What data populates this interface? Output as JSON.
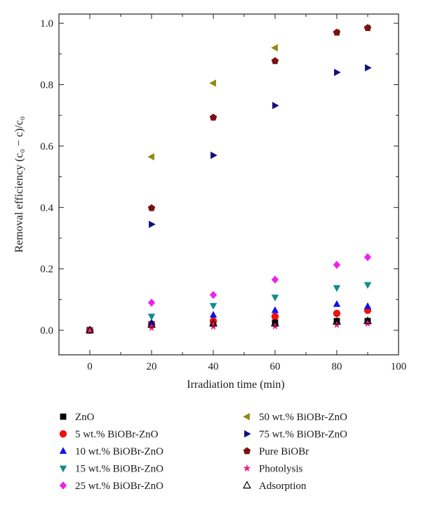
{
  "chart_data": {
    "type": "scatter",
    "title": "",
    "xlabel": "Irradiation time (min)",
    "ylabel": "Removal efficiency (c₀ − c)/c₀",
    "xlim": [
      -10,
      100
    ],
    "ylim": [
      -0.08,
      1.03
    ],
    "x_ticks": [
      0,
      20,
      40,
      60,
      80,
      100
    ],
    "y_ticks": [
      0.0,
      0.2,
      0.4,
      0.6,
      0.8,
      1.0
    ],
    "x_tick_labels": [
      "0",
      "20",
      "40",
      "60",
      "80",
      "100"
    ],
    "y_tick_labels": [
      "0.0",
      "0.2",
      "0.4",
      "0.6",
      "0.8",
      "1.0"
    ],
    "grid": false,
    "legend_position": "bottom",
    "series": [
      {
        "name": "ZnO",
        "marker": "square",
        "color": "#000000",
        "x": [
          0,
          20,
          40,
          60,
          80,
          90
        ],
        "y": [
          0.0,
          0.02,
          0.025,
          0.025,
          0.03,
          0.03
        ]
      },
      {
        "name": "5 wt.% BiOBr-ZnO",
        "marker": "circle",
        "color": "#ee1111",
        "x": [
          0,
          20,
          40,
          60,
          80,
          90
        ],
        "y": [
          0.0,
          0.02,
          0.03,
          0.045,
          0.055,
          0.065
        ]
      },
      {
        "name": "10 wt.% BiOBr-ZnO",
        "marker": "triangle-up",
        "color": "#1111ee",
        "x": [
          0,
          20,
          40,
          60,
          80,
          90
        ],
        "y": [
          0.0,
          0.025,
          0.05,
          0.065,
          0.085,
          0.078
        ]
      },
      {
        "name": "15 wt.% BiOBr-ZnO",
        "marker": "triangle-down",
        "color": "#118c8c",
        "x": [
          0,
          20,
          40,
          60,
          80,
          90
        ],
        "y": [
          0.0,
          0.045,
          0.08,
          0.107,
          0.138,
          0.148
        ]
      },
      {
        "name": "25 wt.% BiOBr-ZnO",
        "marker": "diamond",
        "color": "#ee22ee",
        "x": [
          0,
          20,
          40,
          60,
          80,
          90
        ],
        "y": [
          0.0,
          0.09,
          0.115,
          0.165,
          0.213,
          0.238
        ]
      },
      {
        "name": "50 wt.% BiOBr-ZnO",
        "marker": "triangle-left",
        "color": "#8c8c11",
        "x": [
          0,
          20,
          40,
          60,
          80,
          90
        ],
        "y": [
          0.0,
          0.565,
          0.805,
          0.92,
          0.97,
          0.985
        ]
      },
      {
        "name": "75 wt.% BiOBr-ZnO",
        "marker": "triangle-right",
        "color": "#11117a",
        "x": [
          0,
          20,
          40,
          60,
          80,
          90
        ],
        "y": [
          0.0,
          0.345,
          0.57,
          0.732,
          0.84,
          0.855
        ]
      },
      {
        "name": "Pure BiOBr",
        "marker": "pentagon",
        "color": "#7a1111",
        "x": [
          0,
          20,
          40,
          60,
          80,
          90
        ],
        "y": [
          0.0,
          0.398,
          0.693,
          0.877,
          0.97,
          0.985
        ]
      },
      {
        "name": "Photolysis",
        "marker": "star",
        "color": "#ee2288",
        "x": [
          0,
          20,
          40,
          60,
          80,
          90
        ],
        "y": [
          0.0,
          0.008,
          0.012,
          0.013,
          0.018,
          0.022
        ]
      },
      {
        "name": "Adsorption",
        "marker": "open-triangle-up",
        "color": "#000000",
        "x": [
          0,
          20,
          40,
          60,
          80,
          90
        ],
        "y": [
          0.0,
          0.018,
          0.022,
          0.022,
          0.028,
          0.03
        ]
      }
    ]
  }
}
